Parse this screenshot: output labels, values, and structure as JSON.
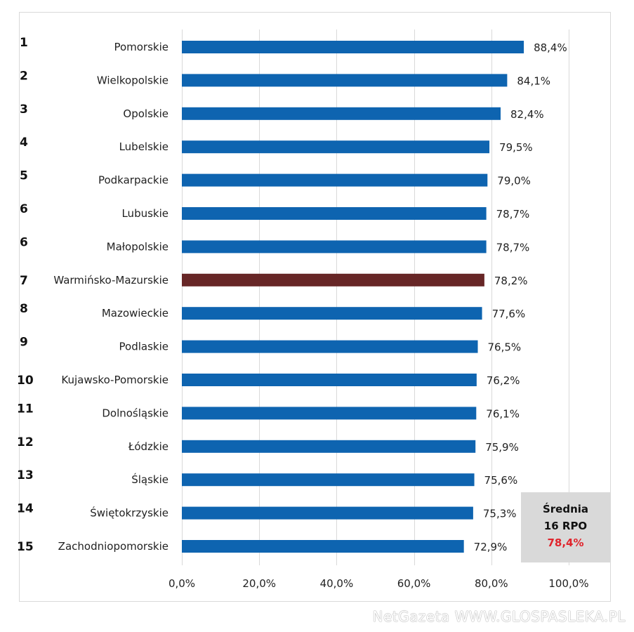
{
  "chart_data": {
    "type": "bar",
    "orientation": "horizontal",
    "title": "",
    "xlabel": "",
    "ylabel": "",
    "xlim": [
      0,
      100
    ],
    "x_ticks": [
      "0,0%",
      "20,0%",
      "40,0%",
      "60,0%",
      "80,0%",
      "100,0%"
    ],
    "x_tick_values": [
      0,
      20,
      40,
      60,
      80,
      100
    ],
    "grid": "vertical",
    "ranks": [
      "1",
      "2",
      "3",
      "4",
      "5",
      "6",
      "6",
      "7",
      "8",
      "9",
      "10",
      "11",
      "12",
      "13",
      "14",
      "15"
    ],
    "categories": [
      "Pomorskie",
      "Wielkopolskie",
      "Opolskie",
      "Lubelskie",
      "Podkarpackie",
      "Lubuskie",
      "Małopolskie",
      "Warmińsko-Mazurskie",
      "Mazowieckie",
      "Podlaskie",
      "Kujawsko-Pomorskie",
      "Dolnośląskie",
      "Łódzkie",
      "Śląskie",
      "Świętokrzyskie",
      "Zachodniopomorskie"
    ],
    "values": [
      88.4,
      84.1,
      82.4,
      79.5,
      79.0,
      78.7,
      78.7,
      78.2,
      77.6,
      76.5,
      76.2,
      76.1,
      75.9,
      75.6,
      75.3,
      72.9
    ],
    "value_labels": [
      "88,4%",
      "84,1%",
      "82,4%",
      "79,5%",
      "79,0%",
      "78,7%",
      "78,7%",
      "78,2%",
      "77,6%",
      "76,5%",
      "76,2%",
      "76,1%",
      "75,9%",
      "75,6%",
      "75,3%",
      "72,9%"
    ],
    "highlight_index": 7,
    "colors": {
      "bar": "#0e64b0",
      "highlight": "#672626",
      "gridline": "#d9d9d9",
      "average_value": "#e0242c",
      "average_box": "#d9d9d9"
    },
    "annotation": {
      "line1": "Średnia",
      "line2": "16 RPO",
      "value": "78,4%",
      "position": "bottom-right"
    }
  },
  "watermark": "NetGazeta WWW.GLOSPASLEKA.PL"
}
